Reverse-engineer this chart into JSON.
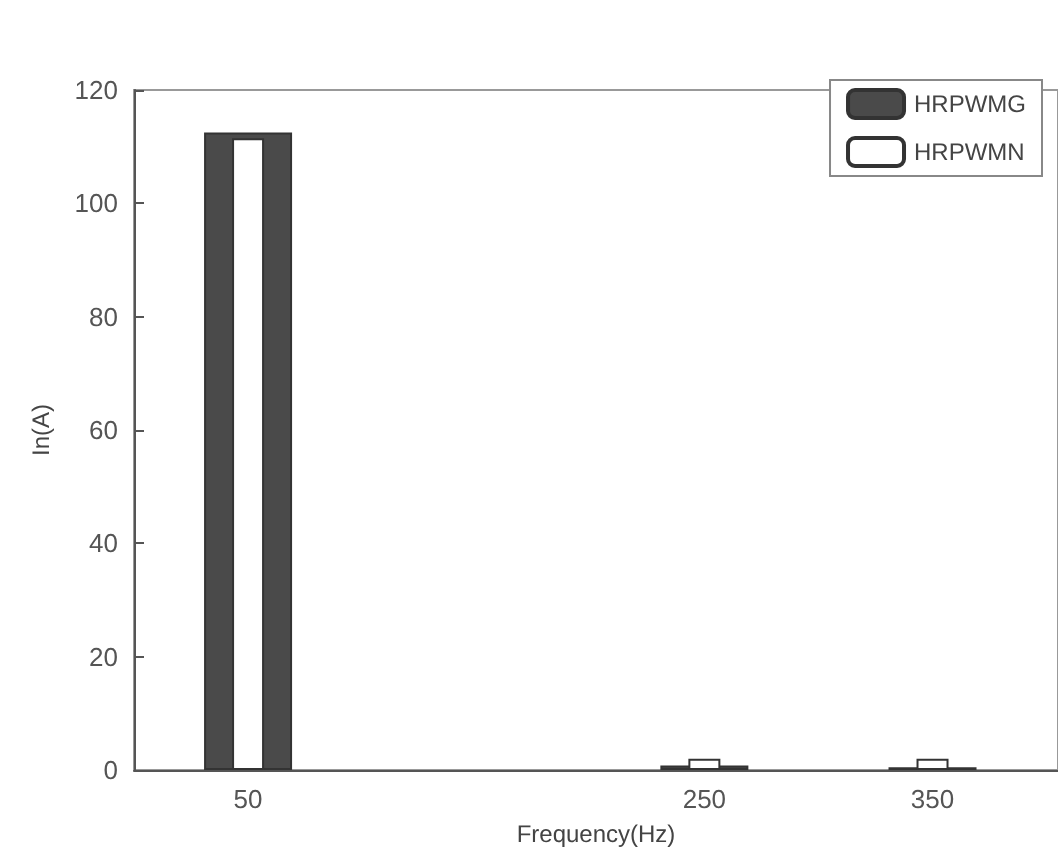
{
  "chart_data": {
    "type": "bar",
    "xlabel": "Frequency(Hz)",
    "ylabel": "In(A)",
    "x": [
      50,
      250,
      350
    ],
    "series": [
      {
        "name": "HRPWMG",
        "color": "#4a4a4a",
        "values": [
          112.5,
          0.8,
          0.5
        ]
      },
      {
        "name": "HRPWMN",
        "color": "#ffffff",
        "values": [
          111.5,
          2,
          2
        ]
      }
    ],
    "xlim": [
      0,
      405
    ],
    "xticks": [
      50,
      250,
      350
    ],
    "ylim": [
      0,
      120
    ],
    "yticks": [
      0,
      20,
      40,
      60,
      80,
      100,
      120
    ],
    "grid": false,
    "legend": "top right"
  }
}
